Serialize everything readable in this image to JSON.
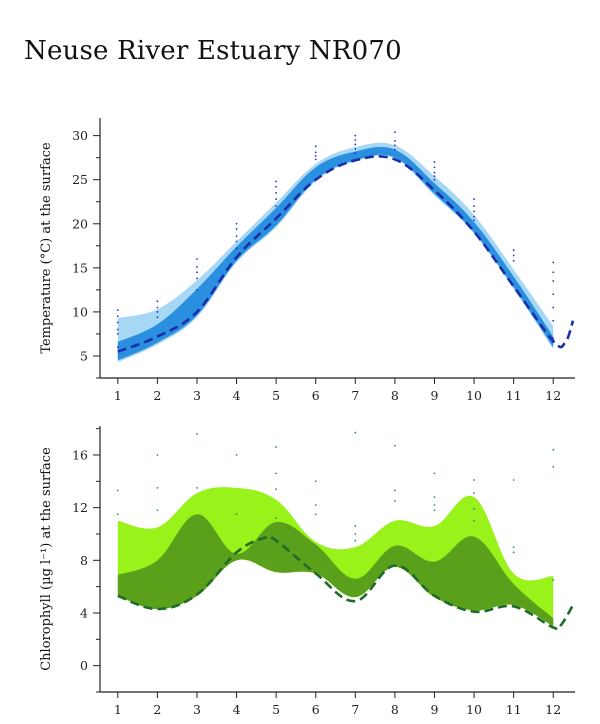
{
  "title": "Neuse River Estuary NR070",
  "colors": {
    "temp_outer_band": "#a6d8f5",
    "temp_inner_band": "#2b8fe0",
    "temp_median": "#1b2ea8",
    "temp_obs": "#2833c8",
    "chl_outer_band": "#99f21a",
    "chl_inner_band": "#5aa01a",
    "chl_median": "#1e6b2a",
    "chl_obs": "#2a8a90"
  },
  "chart_data": [
    {
      "type": "area",
      "ylabel": "Temperature (°C) at the surface",
      "xlabel": "",
      "categories": [
        "1",
        "2",
        "3",
        "4",
        "5",
        "6",
        "7",
        "8",
        "9",
        "10",
        "11",
        "12"
      ],
      "x_ticks": [
        1,
        2,
        3,
        4,
        5,
        6,
        7,
        8,
        9,
        10,
        11,
        12
      ],
      "y_ticks": [
        5,
        10,
        15,
        20,
        25,
        30
      ],
      "xlim": [
        0.55,
        12.55
      ],
      "ylim": [
        2.5,
        32
      ],
      "grid": false,
      "bands": [
        {
          "name": "outer",
          "x": [
            1,
            2,
            3,
            4,
            5,
            6,
            7,
            8,
            9,
            10,
            11,
            12
          ],
          "lower": [
            4.3,
            6.3,
            9.4,
            15.6,
            19.6,
            24.8,
            27.1,
            27.4,
            23.2,
            18.9,
            12.6,
            5.8
          ],
          "upper": [
            9.3,
            10.3,
            13.6,
            18.0,
            22.4,
            26.8,
            28.7,
            28.9,
            25.4,
            21.0,
            14.8,
            8.4
          ]
        },
        {
          "name": "inner",
          "x": [
            1,
            2,
            3,
            4,
            5,
            6,
            7,
            8,
            9,
            10,
            11,
            12
          ],
          "lower": [
            4.5,
            6.5,
            9.6,
            15.8,
            19.8,
            25.0,
            27.2,
            27.5,
            23.4,
            19.0,
            12.8,
            6.0
          ],
          "upper": [
            6.6,
            8.6,
            12.6,
            17.4,
            21.8,
            26.4,
            28.2,
            28.4,
            24.6,
            20.2,
            14.0,
            7.2
          ]
        }
      ],
      "median": {
        "x": [
          1,
          2,
          3,
          4,
          5,
          6,
          7,
          8,
          9,
          10,
          11,
          12,
          12.3,
          12.5
        ],
        "y": [
          5.5,
          7.2,
          10.0,
          16.2,
          20.6,
          25.0,
          27.2,
          27.3,
          23.8,
          19.1,
          12.9,
          6.7,
          6.5,
          9.0
        ]
      },
      "observations": [
        {
          "x": 1,
          "y": [
            6.0,
            7.5,
            8.0,
            8.8,
            9.5,
            10.2
          ]
        },
        {
          "x": 2,
          "y": [
            9.4,
            10.0,
            10.5,
            11.2
          ]
        },
        {
          "x": 3,
          "y": [
            12.5,
            13.8,
            14.5,
            15.1,
            16.0
          ]
        },
        {
          "x": 4,
          "y": [
            17.2,
            18.0,
            18.6,
            19.4,
            20.0
          ]
        },
        {
          "x": 5,
          "y": [
            22.0,
            22.8,
            23.5,
            24.2,
            24.8
          ]
        },
        {
          "x": 6,
          "y": [
            27.3,
            27.7,
            28.1,
            28.8
          ]
        },
        {
          "x": 7,
          "y": [
            28.0,
            28.5,
            29.0,
            29.5,
            30.0
          ]
        },
        {
          "x": 8,
          "y": [
            28.4,
            28.9,
            29.4,
            30.4
          ]
        },
        {
          "x": 9,
          "y": [
            25.0,
            25.4,
            25.8,
            26.4,
            27.0
          ]
        },
        {
          "x": 10,
          "y": [
            20.4,
            20.8,
            21.4,
            22.0,
            22.8
          ]
        },
        {
          "x": 11,
          "y": [
            15.8,
            16.4,
            17.0
          ]
        },
        {
          "x": 12,
          "y": [
            7.0,
            9.0,
            10.5,
            12.0,
            13.5,
            14.5,
            15.6
          ]
        }
      ]
    },
    {
      "type": "area",
      "ylabel": "Chlorophyll (µg l⁻¹) at the surface",
      "xlabel": "",
      "categories": [
        "1",
        "2",
        "3",
        "4",
        "5",
        "6",
        "7",
        "8",
        "9",
        "10",
        "11",
        "12"
      ],
      "x_ticks": [
        1,
        2,
        3,
        4,
        5,
        6,
        7,
        8,
        9,
        10,
        11,
        12
      ],
      "y_ticks": [
        0,
        4,
        8,
        12,
        16
      ],
      "xlim": [
        0.55,
        12.55
      ],
      "ylim": [
        -2,
        18.2
      ],
      "grid": false,
      "bands": [
        {
          "name": "outer",
          "x": [
            1,
            2,
            3,
            4,
            5,
            6,
            7,
            8,
            9,
            10,
            11,
            12
          ],
          "lower": [
            5.3,
            4.3,
            5.3,
            8.0,
            7.1,
            7.0,
            5.2,
            7.5,
            5.2,
            4.2,
            4.6,
            3.0
          ],
          "upper": [
            11.0,
            10.5,
            13.1,
            13.5,
            12.6,
            9.4,
            9.0,
            11.0,
            10.6,
            12.8,
            7.0,
            6.8
          ]
        },
        {
          "name": "inner",
          "x": [
            1,
            2,
            3,
            4,
            5,
            6,
            7,
            8,
            9,
            10,
            11,
            12
          ],
          "lower": [
            5.3,
            4.3,
            5.3,
            8.0,
            7.1,
            7.0,
            5.2,
            7.5,
            5.2,
            4.2,
            4.6,
            3.0
          ],
          "upper": [
            6.9,
            8.0,
            11.5,
            8.5,
            10.9,
            9.2,
            6.6,
            9.1,
            7.9,
            9.8,
            6.2,
            3.6
          ]
        }
      ],
      "median": {
        "x": [
          1,
          2,
          3,
          4,
          4.7,
          5,
          6,
          7,
          8,
          9,
          10,
          11,
          12,
          12.2,
          12.5
        ],
        "y": [
          5.3,
          4.3,
          5.4,
          8.6,
          9.7,
          9.5,
          7.0,
          4.9,
          7.6,
          5.3,
          4.1,
          4.5,
          2.9,
          3.1,
          4.6
        ]
      },
      "observations": [
        {
          "x": 1,
          "y": [
            11.5,
            13.3
          ]
        },
        {
          "x": 2,
          "y": [
            11.8,
            13.5,
            16.0
          ]
        },
        {
          "x": 3,
          "y": [
            13.5,
            17.6
          ]
        },
        {
          "x": 4,
          "y": [
            11.5,
            16.0
          ]
        },
        {
          "x": 5,
          "y": [
            11.2,
            13.4,
            14.6,
            16.6
          ]
        },
        {
          "x": 6,
          "y": [
            9.0,
            11.5,
            12.2,
            14.0
          ]
        },
        {
          "x": 7,
          "y": [
            9.5,
            10.0,
            10.6,
            17.7
          ]
        },
        {
          "x": 8,
          "y": [
            12.5,
            13.3,
            16.7
          ]
        },
        {
          "x": 9,
          "y": [
            11.8,
            12.2,
            12.8,
            14.6
          ]
        },
        {
          "x": 10,
          "y": [
            11.0,
            11.9,
            13.1,
            14.1
          ]
        },
        {
          "x": 11,
          "y": [
            8.6,
            9.0,
            14.1
          ]
        },
        {
          "x": 12,
          "y": [
            6.5,
            15.1,
            16.4
          ]
        }
      ]
    }
  ]
}
